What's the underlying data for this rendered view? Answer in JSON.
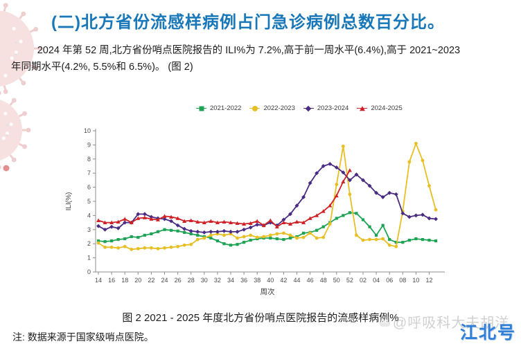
{
  "page": {
    "title": "(二)北方省份流感样病例占门急诊病例总数百分比。",
    "title_color": "#1877b8",
    "paragraph_lines": [
      "2024 年第 52 周,北方省份哨点医院报告的 ILI%为 7.2%,高于前一周水平(6.4%),高于 2021~2023",
      "年同期水平(4.2%, 5.5%和 6.5%)。  (图 2)"
    ],
    "caption": "图 2  2021 - 2025 年度北方省份哨点医院报告的流感样病例%",
    "note": "注: 数据来源于国家级哨点医院。",
    "watermark_logo": "du",
    "watermark": "@呼吸科大夫胡洋",
    "brand": "江北号",
    "brand_color": "#2f7fd6"
  },
  "chart_data": {
    "type": "line",
    "title": "",
    "xlabel": "周次",
    "ylabel": "ILI(%)",
    "ylim": [
      0,
      10
    ],
    "grid": false,
    "legend_position": "top",
    "x_tick_every": 2,
    "axis_color": "#8c8c8c",
    "tick_text_color": "#4a4a4a",
    "weeks": [
      "14",
      "15",
      "16",
      "17",
      "18",
      "19",
      "20",
      "21",
      "22",
      "23",
      "24",
      "25",
      "26",
      "27",
      "28",
      "29",
      "30",
      "31",
      "32",
      "33",
      "34",
      "35",
      "36",
      "37",
      "38",
      "39",
      "40",
      "41",
      "42",
      "43",
      "44",
      "45",
      "46",
      "47",
      "48",
      "49",
      "50",
      "51",
      "52",
      "01",
      "02",
      "03",
      "04",
      "05",
      "06",
      "07",
      "08",
      "09",
      "10",
      "11",
      "12",
      "13"
    ],
    "series": [
      {
        "name": "2021-2022",
        "color": "#1ea355",
        "marker": "square",
        "values": [
          2.2,
          2.15,
          2.2,
          2.3,
          2.35,
          2.5,
          2.45,
          2.6,
          2.7,
          2.85,
          3.0,
          2.95,
          2.9,
          2.8,
          2.7,
          2.6,
          2.5,
          2.4,
          2.2,
          2.0,
          1.9,
          1.95,
          2.1,
          2.25,
          2.35,
          2.4,
          2.4,
          2.35,
          2.3,
          2.4,
          2.5,
          2.75,
          2.8,
          2.95,
          3.2,
          3.5,
          3.8,
          4.0,
          4.2,
          4.15,
          3.7,
          3.2,
          2.6,
          3.3,
          2.3,
          2.1,
          2.1,
          2.25,
          2.35,
          2.3,
          2.25,
          2.2
        ]
      },
      {
        "name": "2022-2023",
        "color": "#e7bf24",
        "marker": "circle",
        "values": [
          2.05,
          1.75,
          1.75,
          1.7,
          1.8,
          1.6,
          1.65,
          1.7,
          1.7,
          1.65,
          1.7,
          1.75,
          1.8,
          1.9,
          1.95,
          2.3,
          2.4,
          2.6,
          2.7,
          2.6,
          2.7,
          2.4,
          2.5,
          2.6,
          2.45,
          2.5,
          2.6,
          2.7,
          2.75,
          2.6,
          2.4,
          2.45,
          2.75,
          2.4,
          2.45,
          3.4,
          6.2,
          8.9,
          5.5,
          2.6,
          2.25,
          2.3,
          2.3,
          2.35,
          1.9,
          1.8,
          4.3,
          7.8,
          9.1,
          7.9,
          6.1,
          4.4
        ]
      },
      {
        "name": "2023-2024",
        "color": "#4a2b83",
        "marker": "diamond",
        "values": [
          3.25,
          3.0,
          3.2,
          3.1,
          3.5,
          3.5,
          4.1,
          4.1,
          3.9,
          3.8,
          3.75,
          3.6,
          3.3,
          3.05,
          2.9,
          2.85,
          2.8,
          2.85,
          2.85,
          2.9,
          2.85,
          2.85,
          3.0,
          3.15,
          3.35,
          3.3,
          3.5,
          3.3,
          3.7,
          4.1,
          4.7,
          5.3,
          6.3,
          7.0,
          7.5,
          7.65,
          7.4,
          7.05,
          6.5,
          6.9,
          6.5,
          6.1,
          5.6,
          5.3,
          5.6,
          5.5,
          4.15,
          3.9,
          4.0,
          4.05,
          3.8,
          3.75
        ]
      },
      {
        "name": "2024-2025",
        "color": "#ce2227",
        "marker": "triangle",
        "values": [
          3.65,
          3.5,
          3.5,
          3.55,
          3.75,
          3.5,
          3.8,
          3.85,
          3.75,
          3.7,
          3.95,
          3.9,
          3.8,
          3.6,
          3.65,
          3.55,
          3.5,
          3.6,
          3.5,
          3.55,
          3.5,
          3.45,
          3.4,
          3.45,
          3.6,
          3.3,
          3.65,
          3.2,
          3.5,
          3.4,
          3.55,
          3.5,
          3.8,
          4.0,
          4.3,
          4.7,
          5.4,
          6.4,
          7.2
        ]
      }
    ]
  }
}
